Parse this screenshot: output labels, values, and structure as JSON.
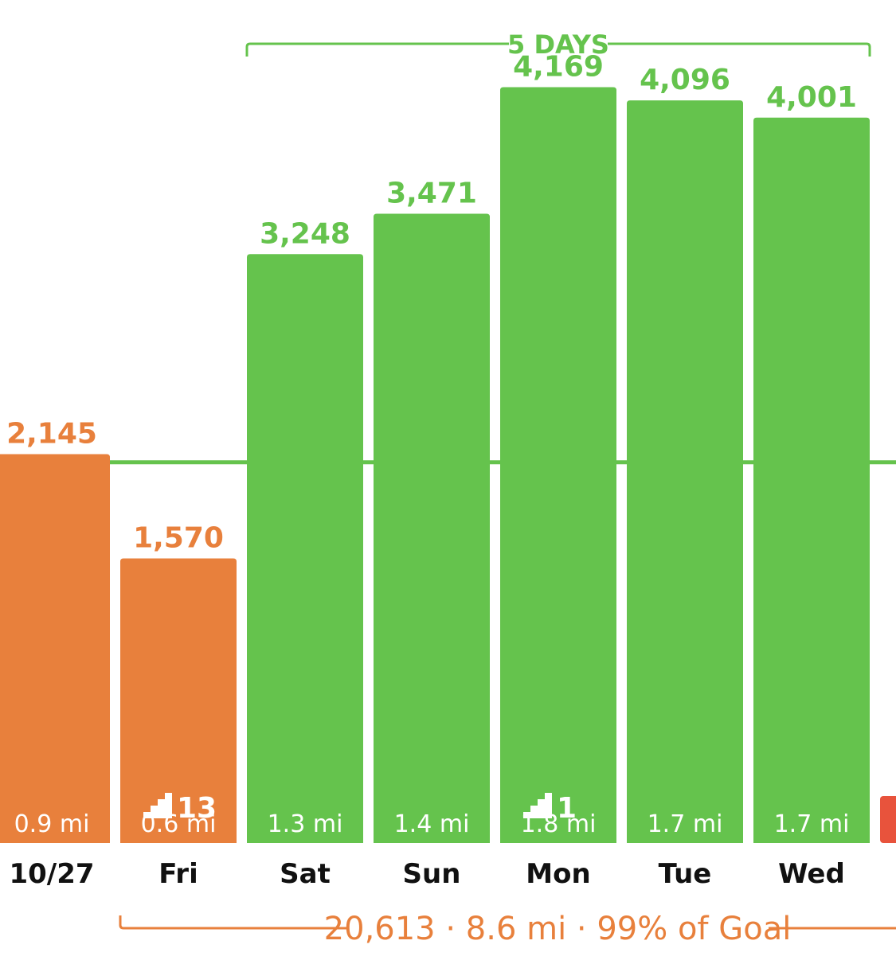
{
  "colors": {
    "goal_met": "#65c34d",
    "goal_missed": "#e8803c",
    "partial_next": "#e8533c",
    "day_text": "#111111",
    "bar_text": "#ffffff"
  },
  "chart_data": {
    "type": "bar",
    "title": "",
    "xlabel": "",
    "ylabel": "",
    "categories": [
      "10/27",
      "Fri",
      "Sat",
      "Sun",
      "Mon",
      "Tue",
      "Wed"
    ],
    "values": [
      2145,
      1570,
      3248,
      3471,
      4169,
      4096,
      4001
    ],
    "value_labels": [
      "2,145",
      "1,570",
      "3,248",
      "3,471",
      "4,169",
      "4,096",
      "4,001"
    ],
    "distances": [
      "0.9 mi",
      "0.6 mi",
      "1.3 mi",
      "1.4 mi",
      "1.8 mi",
      "1.7 mi",
      "1.7 mi"
    ],
    "floors": [
      null,
      "13",
      null,
      null,
      "1",
      null,
      null
    ],
    "bar_status": [
      "missed",
      "missed",
      "met",
      "met",
      "met",
      "met",
      "met"
    ],
    "goal": 2100,
    "ylim": [
      0,
      4650
    ],
    "streak": {
      "label": "5 DAYS",
      "start_index": 2,
      "end_index": 6
    },
    "summary": {
      "label": "20,613 · 8.6 mi · 99% of Goal",
      "start_index": 1
    },
    "partial_bar_next": true
  }
}
